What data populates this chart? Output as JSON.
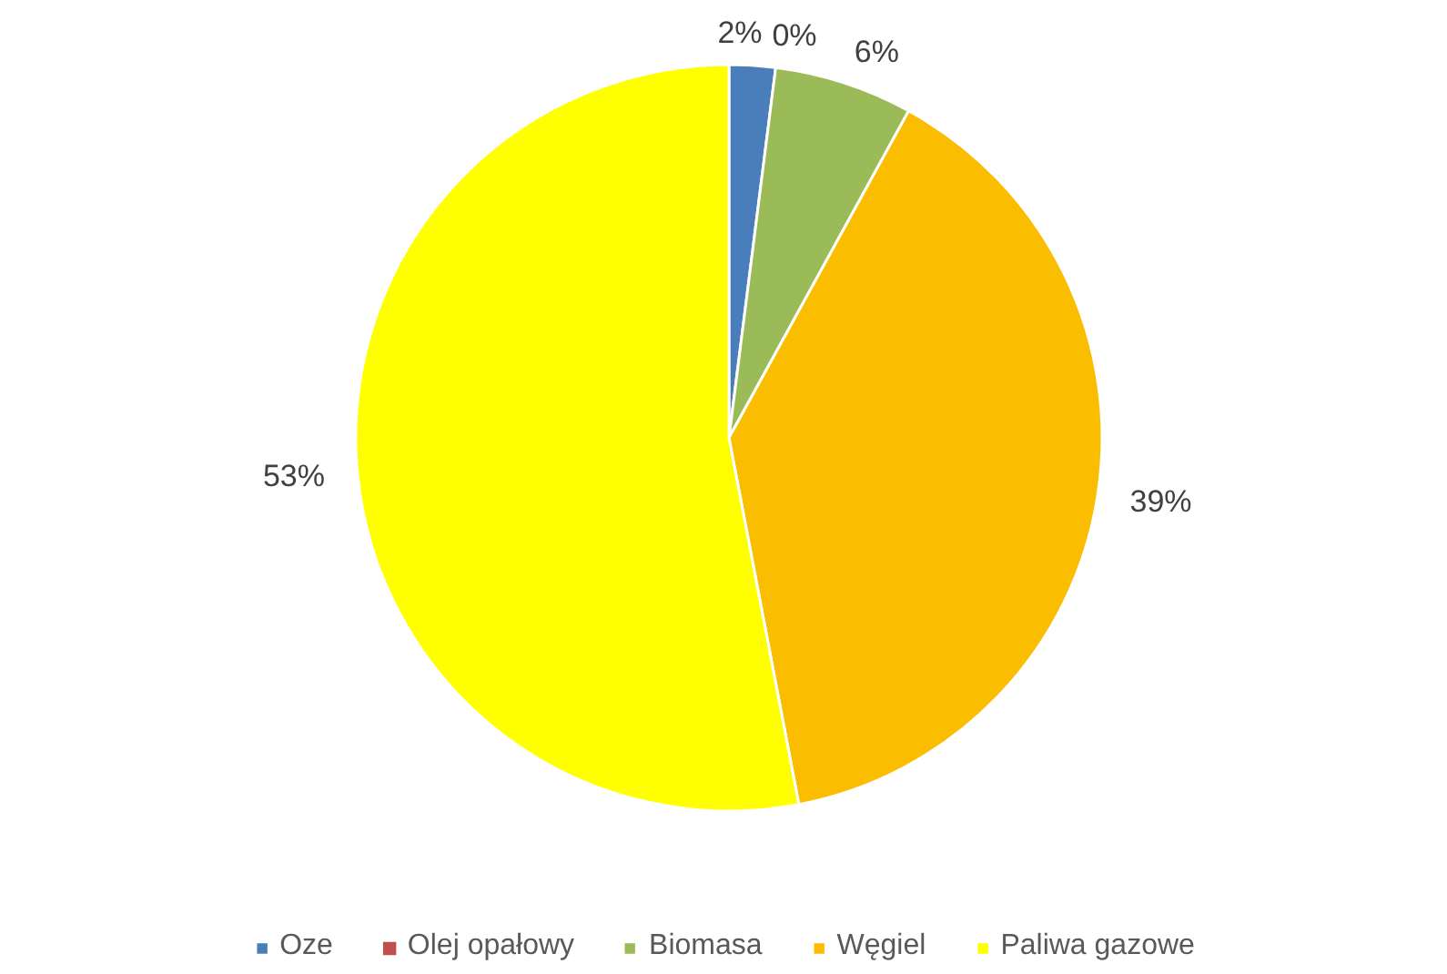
{
  "chart_data": {
    "type": "pie",
    "categories": [
      "Oze",
      "Olej opałowy",
      "Biomasa",
      "Węgiel",
      "Paliwa gazowe"
    ],
    "values": [
      2,
      0,
      6,
      39,
      53
    ],
    "colors": [
      "#4a7ebb",
      "#c0504d",
      "#9bbb59",
      "#fbbd00",
      "#ffff00"
    ],
    "value_labels": [
      "2%",
      "0%",
      "6%",
      "39%",
      "53%"
    ],
    "legend": "bottom"
  }
}
